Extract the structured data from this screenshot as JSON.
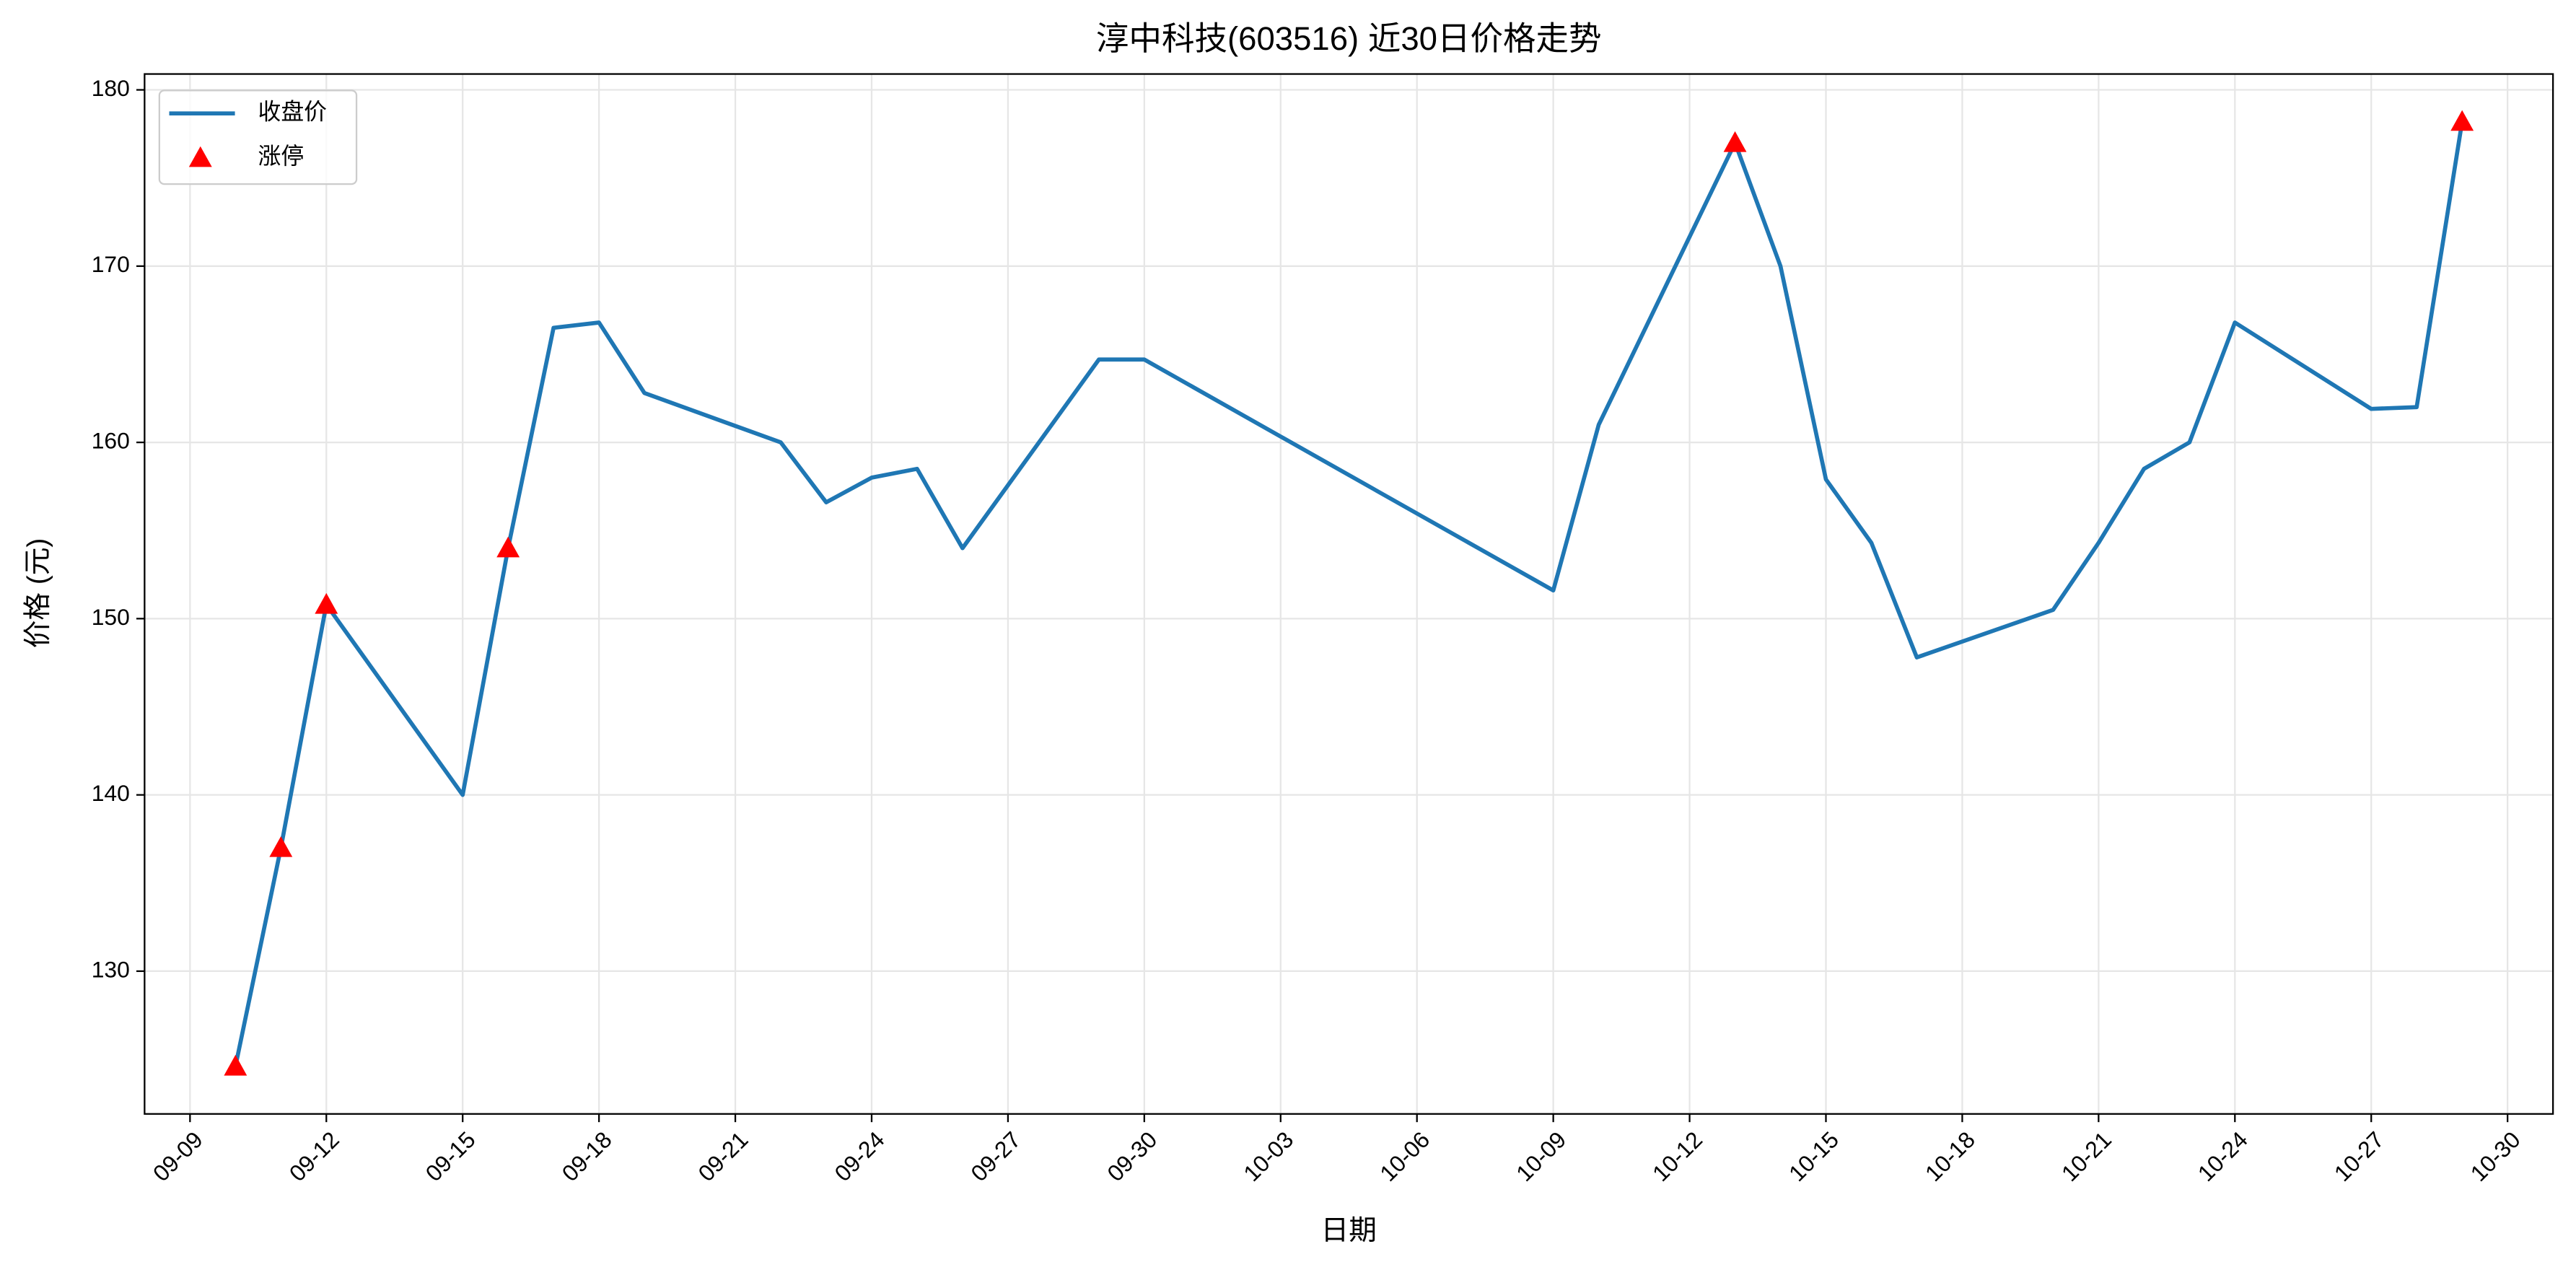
{
  "chart_data": {
    "type": "line",
    "title": "淳中科技(603516) 近30日价格走势",
    "xlabel": "日期",
    "ylabel": "价格 (元)",
    "x": [
      "09-10",
      "09-11",
      "09-12",
      "09-15",
      "09-16",
      "09-17",
      "09-18",
      "09-19",
      "09-22",
      "09-23",
      "09-24",
      "09-25",
      "09-26",
      "09-29",
      "09-30",
      "10-09",
      "10-10",
      "10-13",
      "10-14",
      "10-15",
      "10-16",
      "10-17",
      "10-20",
      "10-21",
      "10-22",
      "10-23",
      "10-24",
      "10-27",
      "10-28",
      "10-29"
    ],
    "series": [
      {
        "name": "收盘价",
        "color": "#1f77b4",
        "values": [
          124.6,
          137.0,
          150.8,
          140.0,
          154.0,
          166.5,
          166.8,
          162.8,
          160.0,
          156.6,
          158.0,
          158.5,
          154.0,
          164.7,
          164.7,
          151.6,
          161.0,
          177.0,
          170.0,
          157.9,
          154.3,
          147.8,
          150.5,
          154.3,
          158.5,
          160.0,
          166.8,
          161.9,
          162.0,
          178.2
        ]
      },
      {
        "name": "涨停",
        "color": "#ff0000",
        "marker": "triangle",
        "x": [
          "09-10",
          "09-11",
          "09-12",
          "09-16",
          "10-13",
          "10-29"
        ],
        "values": [
          124.6,
          137.0,
          150.8,
          154.0,
          177.0,
          178.2
        ]
      }
    ],
    "xlim": [
      "09-08",
      "10-31"
    ],
    "xticks": [
      "09-09",
      "09-12",
      "09-15",
      "09-18",
      "09-21",
      "09-24",
      "09-27",
      "09-30",
      "10-03",
      "10-06",
      "10-09",
      "10-12",
      "10-15",
      "10-18",
      "10-21",
      "10-24",
      "10-27",
      "10-30"
    ],
    "ylim": [
      121.9,
      180.9
    ],
    "yticks": [
      130,
      140,
      150,
      160,
      170,
      180
    ],
    "grid": true,
    "legend": "upper-left"
  }
}
